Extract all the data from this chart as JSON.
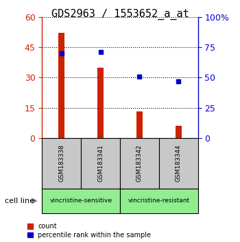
{
  "title": "GDS2963 / 1553652_a_at",
  "samples": [
    "GSM183338",
    "GSM183341",
    "GSM183342",
    "GSM183344"
  ],
  "counts": [
    52,
    35,
    13,
    6
  ],
  "percentile_ranks": [
    70,
    71,
    51,
    47
  ],
  "groups": [
    {
      "label": "vincristine-sensitive",
      "indices": [
        0,
        1
      ],
      "color": "#90EE90"
    },
    {
      "label": "vincristine-resistant",
      "indices": [
        2,
        3
      ],
      "color": "#90EE90"
    }
  ],
  "ylim_left": [
    0,
    60
  ],
  "ylim_right": [
    0,
    100
  ],
  "yticks_left": [
    0,
    15,
    30,
    45,
    60
  ],
  "yticks_right": [
    0,
    25,
    50,
    75,
    100
  ],
  "ytick_labels_right": [
    "0",
    "25",
    "50",
    "75",
    "100%"
  ],
  "bar_color": "#CC2200",
  "dot_color": "#0000CC",
  "label_area_color": "#C8C8C8",
  "group_area_color": "#90EE90",
  "cell_line_label": "cell line",
  "legend_count": "count",
  "legend_percentile": "percentile rank within the sample",
  "title_fontsize": 11,
  "tick_fontsize": 9,
  "bar_width": 0.15
}
